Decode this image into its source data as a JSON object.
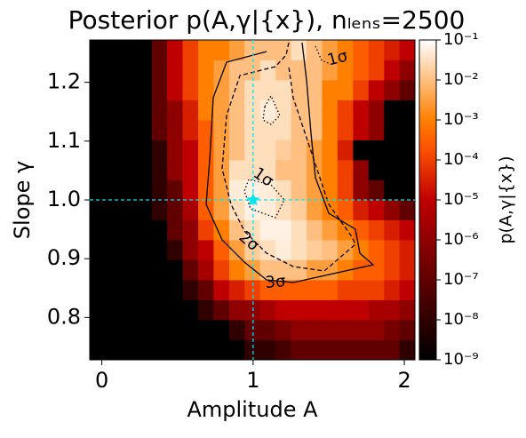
{
  "chart_data": {
    "type": "heatmap",
    "title": "Posterior p(A,γ|{x}), nₗₑₙₛ=2500",
    "x_label": "Amplitude A",
    "y_label": "Slope γ",
    "colorbar_label": "p(A,γ|{x})",
    "colormap": "gist_heat",
    "log_scale_color": true,
    "xlim": [
      -0.08,
      2.07
    ],
    "ylim": [
      0.728,
      1.272
    ],
    "xticks": [
      0,
      1,
      2
    ],
    "yticks": [
      0.8,
      0.9,
      {
        "value": 1,
        "label": "1.0"
      },
      1.1,
      1.2
    ],
    "clim": [
      1e-09,
      0.1
    ],
    "cticks": [
      {
        "value": 1e-09,
        "label": "10⁻⁹"
      },
      {
        "value": 1e-08,
        "label": "10⁻⁸"
      },
      {
        "value": 1e-07,
        "label": "10⁻⁷"
      },
      {
        "value": 1e-06,
        "label": "10⁻⁶"
      },
      {
        "value": 1e-05,
        "label": "10⁻⁵"
      },
      {
        "value": 0.0001,
        "label": "10⁻⁴"
      },
      {
        "value": 0.001,
        "label": "10⁻³"
      },
      {
        "value": 0.01,
        "label": "10⁻²"
      },
      {
        "value": 0.1,
        "label": "10⁻¹"
      }
    ],
    "xbins": [
      -0.08,
      0.022,
      0.125,
      0.227,
      0.33,
      0.432,
      0.534,
      0.637,
      0.739,
      0.842,
      0.944,
      1.046,
      1.149,
      1.251,
      1.354,
      1.456,
      1.558,
      1.661,
      1.763,
      1.866,
      1.968,
      2.07
    ],
    "ybins": [
      0.728,
      0.762,
      0.796,
      0.83,
      0.864,
      0.898,
      0.932,
      0.966,
      1.0,
      1.034,
      1.068,
      1.102,
      1.136,
      1.17,
      1.204,
      1.238,
      1.272
    ],
    "z": [
      [
        1e-09,
        1e-09,
        1e-09,
        1e-09,
        1e-09,
        1e-09,
        1e-09,
        1e-09,
        1e-09,
        1e-09,
        1e-08,
        1e-08,
        3e-08,
        1e-07,
        1e-07,
        1e-07,
        1e-07,
        1e-07,
        1e-07,
        1e-07,
        1e-08
      ],
      [
        1e-09,
        1e-09,
        1e-09,
        1e-09,
        1e-09,
        1e-09,
        1e-09,
        1e-09,
        1e-09,
        1e-08,
        1e-07,
        1e-07,
        3e-07,
        1e-06,
        1e-06,
        1e-06,
        1e-06,
        1e-06,
        1e-06,
        3e-07,
        1e-07
      ],
      [
        1e-09,
        1e-09,
        1e-09,
        1e-09,
        1e-09,
        1e-09,
        1e-09,
        1e-08,
        1e-07,
        1e-06,
        1e-06,
        3e-06,
        1e-05,
        1e-05,
        1e-05,
        1e-05,
        1e-05,
        1e-05,
        3e-06,
        3e-06,
        1e-06
      ],
      [
        1e-09,
        1e-09,
        1e-09,
        1e-09,
        1e-09,
        1e-09,
        1e-08,
        1e-07,
        1e-05,
        3e-05,
        0.0001,
        0.0003,
        0.0003,
        0.0003,
        0.0003,
        0.0003,
        0.0001,
        0.0001,
        0.0001,
        3e-05,
        1e-05
      ],
      [
        1e-09,
        1e-09,
        1e-09,
        1e-09,
        1e-09,
        1e-09,
        1e-07,
        3e-06,
        0.0001,
        0.001,
        0.003,
        0.01,
        0.01,
        0.01,
        0.003,
        0.003,
        0.001,
        0.0003,
        0.0003,
        0.0001,
        3e-05
      ],
      [
        1e-09,
        1e-09,
        1e-09,
        1e-09,
        1e-09,
        1e-08,
        1e-06,
        1e-05,
        0.0003,
        0.003,
        0.016,
        0.03,
        0.05,
        0.03,
        0.016,
        0.01,
        0.003,
        0.001,
        0.0003,
        0.0001,
        3e-05
      ],
      [
        1e-09,
        1e-09,
        1e-09,
        1e-09,
        1e-09,
        1e-07,
        1e-06,
        0.0001,
        0.001,
        0.01,
        0.03,
        0.06,
        0.06,
        0.03,
        0.01,
        0.003,
        0.001,
        0.0003,
        0.0001,
        3e-05,
        1e-05
      ],
      [
        1e-09,
        1e-09,
        1e-09,
        1e-09,
        1e-08,
        1e-07,
        3e-06,
        0.0003,
        0.003,
        0.03,
        0.06,
        0.05,
        0.03,
        0.016,
        0.003,
        0.001,
        0.0003,
        3e-05,
        1e-05,
        1e-06,
        1e-07
      ],
      [
        1e-09,
        1e-09,
        1e-09,
        1e-09,
        1e-08,
        1e-07,
        1e-05,
        0.0003,
        0.003,
        0.05,
        0.06,
        0.05,
        0.03,
        0.01,
        0.003,
        0.001,
        0.0001,
        1e-06,
        1e-07,
        1e-09,
        1e-09
      ],
      [
        1e-09,
        1e-09,
        1e-09,
        1e-09,
        1e-08,
        1e-06,
        1e-05,
        0.0003,
        0.003,
        0.03,
        0.03,
        0.03,
        0.01,
        0.01,
        0.003,
        0.001,
        0.0001,
        1e-06,
        1e-09,
        1e-09,
        1e-09
      ],
      [
        1e-09,
        1e-09,
        1e-09,
        1e-09,
        1e-08,
        1e-06,
        1e-05,
        0.0003,
        0.003,
        0.01,
        0.03,
        0.03,
        0.016,
        0.01,
        0.003,
        0.001,
        3e-05,
        1e-09,
        1e-09,
        1e-09,
        1e-09
      ],
      [
        1e-09,
        1e-09,
        1e-09,
        1e-09,
        1e-07,
        1e-06,
        3e-05,
        0.0003,
        0.003,
        0.01,
        0.03,
        0.03,
        0.03,
        0.01,
        0.01,
        0.001,
        0.0001,
        1e-05,
        1e-06,
        1e-09,
        1e-09
      ],
      [
        1e-09,
        1e-09,
        1e-09,
        1e-09,
        1e-07,
        1e-06,
        3e-05,
        0.001,
        0.003,
        0.01,
        0.03,
        0.05,
        0.03,
        0.01,
        0.01,
        0.001,
        0.0001,
        1e-05,
        1e-06,
        1e-09,
        1e-09
      ],
      [
        1e-09,
        1e-09,
        1e-09,
        1e-09,
        1e-07,
        1e-05,
        0.0001,
        0.001,
        0.003,
        0.01,
        0.03,
        0.03,
        0.03,
        0.01,
        0.01,
        0.001,
        0.001,
        0.0001,
        1e-05,
        1e-06,
        1e-07
      ],
      [
        1e-09,
        1e-09,
        1e-09,
        1e-09,
        1e-07,
        1e-05,
        0.0001,
        0.001,
        0.003,
        0.01,
        0.01,
        0.03,
        0.01,
        0.01,
        0.01,
        0.003,
        0.001,
        0.0003,
        0.0001,
        1e-05,
        1e-06
      ],
      [
        1e-09,
        1e-09,
        1e-09,
        1e-09,
        1e-07,
        1e-05,
        0.0001,
        0.001,
        0.001,
        0.003,
        0.01,
        0.01,
        0.01,
        0.03,
        0.01,
        0.003,
        0.001,
        0.0003,
        0.0001,
        3e-05,
        1e-05
      ]
    ],
    "marker": {
      "x": 1,
      "y": 1,
      "color": "#00e5ee"
    },
    "contour_labels": [
      "1σ",
      "1σ",
      "2σ",
      "3σ"
    ]
  }
}
